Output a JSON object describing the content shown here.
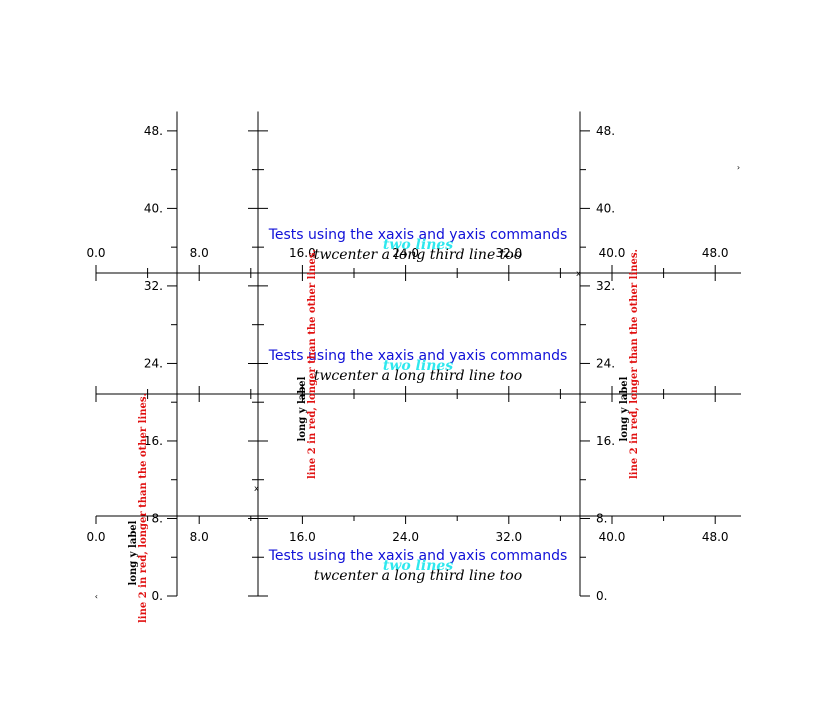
{
  "chart_data": {
    "type": "scatter",
    "title_lines": [
      "Tests using the  xaxis and  yaxis commands",
      "two lines",
      "twcenter a long third line too"
    ],
    "ylabel_lines": [
      "long y label",
      "line 2 in red, longer than the other lines."
    ],
    "xaxis": {
      "range": [
        0,
        50
      ],
      "ticks": [
        0,
        4,
        8,
        12,
        16,
        20,
        24,
        28,
        32,
        36,
        40,
        44,
        48
      ],
      "tick_labels": [
        "0.0",
        "8.0",
        "16.0",
        "24.0",
        "32.0",
        "40.0",
        "48.0"
      ],
      "labeled_values": [
        0,
        8,
        16,
        24,
        32,
        40,
        48
      ]
    },
    "yaxis": {
      "range": [
        0,
        50
      ],
      "ticks": [
        0,
        4,
        8,
        12,
        16,
        20,
        24,
        28,
        32,
        36,
        40,
        44,
        48
      ],
      "tick_labels": [
        "0.",
        "8.",
        "16.",
        "24.",
        "32.",
        "40.",
        "48."
      ],
      "labeled_values": [
        0,
        8,
        16,
        24,
        32,
        40,
        48
      ]
    },
    "grid": false,
    "colors": {
      "title": "#1010d8",
      "subtitle": "#2ee8ee",
      "ylabel_line2": "#e01010"
    }
  }
}
